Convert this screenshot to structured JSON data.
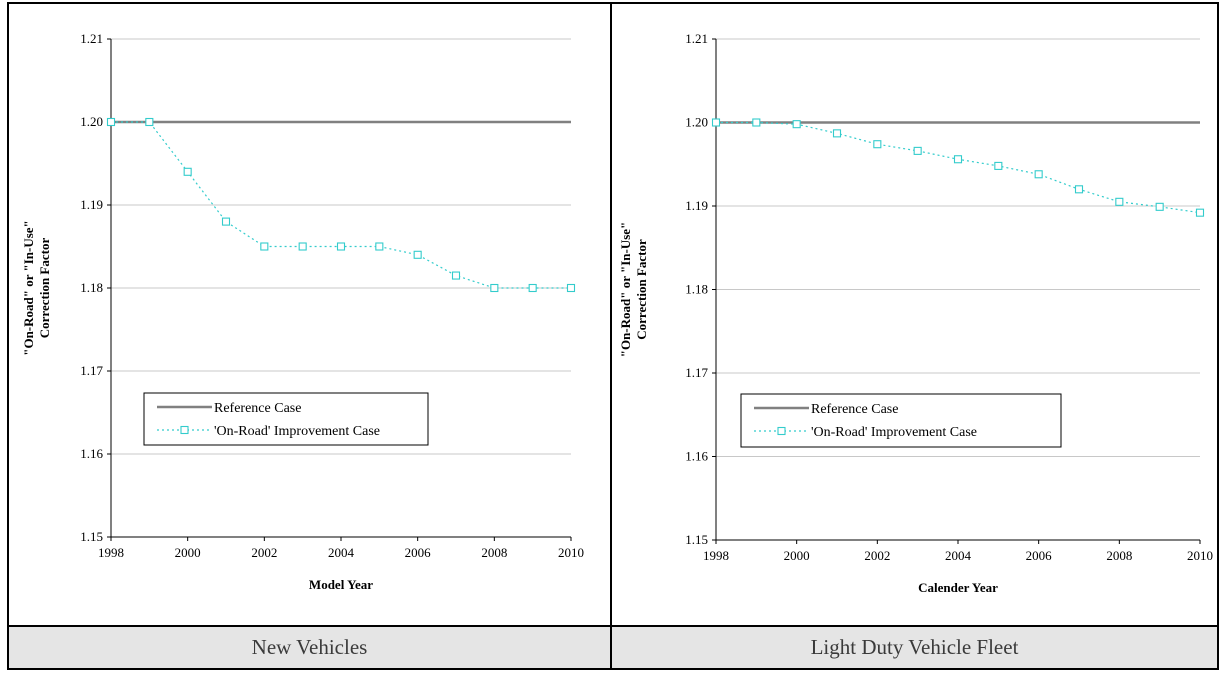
{
  "chart_data": [
    {
      "type": "line",
      "caption": "New Vehicles",
      "xlabel": "Model Year",
      "ylabel_line1": "\"On-Road\" or \"In-Use\"",
      "ylabel_line2": "Correction Factor",
      "xlim": [
        1998,
        2010
      ],
      "ylim": [
        1.15,
        1.21
      ],
      "x_ticks": [
        1998,
        2000,
        2002,
        2004,
        2006,
        2008,
        2010
      ],
      "y_ticks": [
        "1.15",
        "1.16",
        "1.17",
        "1.18",
        "1.19",
        "1.20",
        "1.21"
      ],
      "grid": "horizontal",
      "legend_position": "lower-left",
      "series": [
        {
          "name": "Reference Case",
          "style": "solid",
          "color": "#808080",
          "x": [
            1998,
            2010
          ],
          "values": [
            1.2,
            1.2
          ]
        },
        {
          "name": "'On-Road' Improvement Case",
          "style": "dotted-square-markers",
          "color": "#33cccc",
          "x": [
            1998,
            1999,
            2000,
            2001,
            2002,
            2003,
            2004,
            2005,
            2006,
            2007,
            2008,
            2009,
            2010
          ],
          "values": [
            1.2,
            1.2,
            1.194,
            1.188,
            1.185,
            1.185,
            1.185,
            1.185,
            1.184,
            1.1815,
            1.18,
            1.18,
            1.18
          ]
        }
      ]
    },
    {
      "type": "line",
      "caption": "Light Duty Vehicle Fleet",
      "xlabel": "Calender Year",
      "ylabel_line1": "\"On-Road\" or \"In-Use\"",
      "ylabel_line2": "Correction Factor",
      "xlim": [
        1998,
        2010
      ],
      "ylim": [
        1.15,
        1.21
      ],
      "x_ticks": [
        1998,
        2000,
        2002,
        2004,
        2006,
        2008,
        2010
      ],
      "y_ticks": [
        "1.15",
        "1.16",
        "1.17",
        "1.18",
        "1.19",
        "1.20",
        "1.21"
      ],
      "grid": "horizontal",
      "legend_position": "lower-left",
      "series": [
        {
          "name": "Reference Case",
          "style": "solid",
          "color": "#808080",
          "x": [
            1998,
            2010
          ],
          "values": [
            1.2,
            1.2
          ]
        },
        {
          "name": "'On-Road' Improvement Case",
          "style": "dotted-square-markers",
          "color": "#33cccc",
          "x": [
            1998,
            1999,
            2000,
            2001,
            2002,
            2003,
            2004,
            2005,
            2006,
            2007,
            2008,
            2009,
            2010
          ],
          "values": [
            1.2,
            1.2,
            1.1998,
            1.1987,
            1.1974,
            1.1966,
            1.1956,
            1.1948,
            1.1938,
            1.192,
            1.1905,
            1.1899,
            1.1892
          ]
        }
      ]
    }
  ]
}
